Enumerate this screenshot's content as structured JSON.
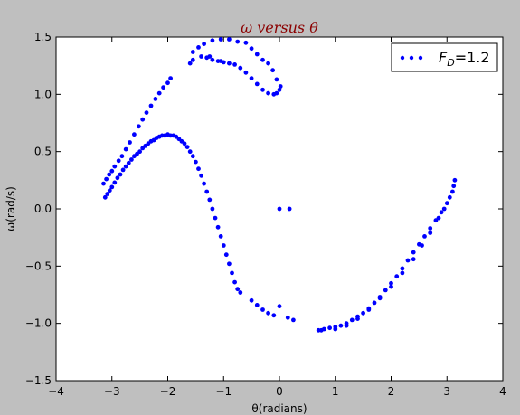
{
  "chart_data": {
    "type": "scatter",
    "title": "ω versus θ",
    "xlabel": "θ(radians)",
    "ylabel": "ω(rad/s)",
    "xlim": [
      -4,
      4
    ],
    "ylim": [
      -1.5,
      1.5
    ],
    "xticks": [
      "−4",
      "−3",
      "−2",
      "−1",
      "0",
      "1",
      "2",
      "3",
      "4"
    ],
    "yticks": [
      "−1.5",
      "−1.0",
      "−0.5",
      "0.0",
      "0.5",
      "1.0",
      "1.5"
    ],
    "grid": false,
    "legend_position": "top-right",
    "colors": {
      "series": "#0000ff",
      "title": "#8b0000",
      "background": "#bfbfbf"
    },
    "series": [
      {
        "name": "F_D=1.2",
        "legend_main": "F",
        "legend_sub": "D",
        "legend_rest": "=1.2",
        "points": [
          [
            -3.12,
            0.1
          ],
          [
            -3.08,
            0.13
          ],
          [
            -3.04,
            0.16
          ],
          [
            -3.0,
            0.19
          ],
          [
            -2.95,
            0.23
          ],
          [
            -2.9,
            0.27
          ],
          [
            -2.85,
            0.3
          ],
          [
            -2.8,
            0.34
          ],
          [
            -2.75,
            0.37
          ],
          [
            -2.7,
            0.4
          ],
          [
            -2.65,
            0.43
          ],
          [
            -2.6,
            0.46
          ],
          [
            -2.55,
            0.48
          ],
          [
            -2.5,
            0.5
          ],
          [
            -2.45,
            0.53
          ],
          [
            -2.4,
            0.55
          ],
          [
            -2.35,
            0.57
          ],
          [
            -2.3,
            0.59
          ],
          [
            -2.25,
            0.6
          ],
          [
            -2.2,
            0.62
          ],
          [
            -2.15,
            0.63
          ],
          [
            -2.1,
            0.64
          ],
          [
            -2.05,
            0.64
          ],
          [
            -2.0,
            0.65
          ],
          [
            -1.95,
            0.64
          ],
          [
            -1.9,
            0.64
          ],
          [
            -1.85,
            0.63
          ],
          [
            -1.8,
            0.61
          ],
          [
            -1.75,
            0.59
          ],
          [
            -1.7,
            0.57
          ],
          [
            -1.65,
            0.54
          ],
          [
            -1.6,
            0.5
          ],
          [
            -1.55,
            0.46
          ],
          [
            -1.5,
            0.41
          ],
          [
            -1.45,
            0.35
          ],
          [
            -1.4,
            0.29
          ],
          [
            -1.35,
            0.22
          ],
          [
            -1.3,
            0.15
          ],
          [
            -1.25,
            0.08
          ],
          [
            -1.2,
            0.0
          ],
          [
            -1.15,
            -0.08
          ],
          [
            -1.1,
            -0.16
          ],
          [
            -1.05,
            -0.24
          ],
          [
            -1.0,
            -0.32
          ],
          [
            -0.95,
            -0.4
          ],
          [
            -0.9,
            -0.48
          ],
          [
            -0.85,
            -0.56
          ],
          [
            -0.8,
            -0.64
          ],
          [
            -0.75,
            -0.7
          ],
          [
            -0.7,
            -0.73
          ],
          [
            -0.5,
            -0.8
          ],
          [
            -0.4,
            -0.84
          ],
          [
            -0.3,
            -0.88
          ],
          [
            -0.2,
            -0.91
          ],
          [
            -0.1,
            -0.93
          ],
          [
            0.0,
            -0.85
          ],
          [
            0.15,
            -0.95
          ],
          [
            0.25,
            -0.97
          ],
          [
            0.7,
            -1.06
          ],
          [
            0.8,
            -1.05
          ],
          [
            0.9,
            -1.04
          ],
          [
            1.0,
            -1.03
          ],
          [
            1.1,
            -1.02
          ],
          [
            1.2,
            -1.0
          ],
          [
            1.3,
            -0.97
          ],
          [
            1.4,
            -0.94
          ],
          [
            1.5,
            -0.91
          ],
          [
            1.6,
            -0.87
          ],
          [
            1.7,
            -0.82
          ],
          [
            1.8,
            -0.77
          ],
          [
            1.9,
            -0.71
          ],
          [
            2.0,
            -0.65
          ],
          [
            2.1,
            -0.59
          ],
          [
            2.2,
            -0.52
          ],
          [
            2.3,
            -0.45
          ],
          [
            2.4,
            -0.38
          ],
          [
            2.5,
            -0.31
          ],
          [
            2.6,
            -0.24
          ],
          [
            2.7,
            -0.17
          ],
          [
            2.8,
            -0.1
          ],
          [
            2.9,
            -0.03
          ],
          [
            3.0,
            0.05
          ],
          [
            3.1,
            0.15
          ],
          [
            -3.15,
            0.22
          ],
          [
            -3.1,
            0.26
          ],
          [
            -3.05,
            0.3
          ],
          [
            -3.0,
            0.33
          ],
          [
            -2.95,
            0.37
          ],
          [
            -2.88,
            0.42
          ],
          [
            -2.82,
            0.46
          ],
          [
            -2.75,
            0.52
          ],
          [
            -2.68,
            0.58
          ],
          [
            -2.6,
            0.65
          ],
          [
            -2.52,
            0.72
          ],
          [
            -2.45,
            0.78
          ],
          [
            -2.38,
            0.84
          ],
          [
            -2.3,
            0.9
          ],
          [
            -2.22,
            0.96
          ],
          [
            -2.15,
            1.01
          ],
          [
            -2.08,
            1.06
          ],
          [
            -2.0,
            1.1
          ],
          [
            -1.95,
            1.14
          ],
          [
            -1.6,
            1.27
          ],
          [
            -1.55,
            1.3
          ],
          [
            -1.4,
            1.33
          ],
          [
            -1.3,
            1.32
          ],
          [
            -1.25,
            1.33
          ],
          [
            -1.2,
            1.3
          ],
          [
            -1.1,
            1.29
          ],
          [
            -1.05,
            1.29
          ],
          [
            -1.0,
            1.28
          ],
          [
            -0.9,
            1.27
          ],
          [
            -0.8,
            1.26
          ],
          [
            -0.7,
            1.23
          ],
          [
            -0.6,
            1.19
          ],
          [
            -0.5,
            1.14
          ],
          [
            -0.4,
            1.09
          ],
          [
            -0.3,
            1.04
          ],
          [
            -0.2,
            1.01
          ],
          [
            -0.1,
            1.0
          ],
          [
            -0.05,
            1.01
          ],
          [
            0.0,
            1.04
          ],
          [
            0.02,
            1.07
          ],
          [
            -1.55,
            1.37
          ],
          [
            -1.45,
            1.41
          ],
          [
            -1.35,
            1.44
          ],
          [
            -1.2,
            1.47
          ],
          [
            -1.05,
            1.48
          ],
          [
            -0.9,
            1.48
          ],
          [
            -0.75,
            1.46
          ],
          [
            -0.6,
            1.45
          ],
          [
            -0.5,
            1.4
          ],
          [
            -0.4,
            1.35
          ],
          [
            -0.3,
            1.3
          ],
          [
            -0.2,
            1.27
          ],
          [
            -0.12,
            1.21
          ],
          [
            -0.05,
            1.13
          ],
          [
            0.0,
            0.0
          ],
          [
            0.18,
            0.0
          ],
          [
            0.75,
            -1.06
          ],
          [
            1.0,
            -1.05
          ],
          [
            1.2,
            -1.02
          ],
          [
            1.4,
            -0.96
          ],
          [
            1.6,
            -0.88
          ],
          [
            1.8,
            -0.78
          ],
          [
            2.0,
            -0.68
          ],
          [
            2.2,
            -0.56
          ],
          [
            2.4,
            -0.44
          ],
          [
            2.55,
            -0.32
          ],
          [
            2.7,
            -0.21
          ],
          [
            2.85,
            -0.08
          ],
          [
            2.95,
            0.0
          ],
          [
            3.05,
            0.1
          ],
          [
            3.12,
            0.2
          ],
          [
            3.14,
            0.25
          ]
        ]
      }
    ]
  }
}
